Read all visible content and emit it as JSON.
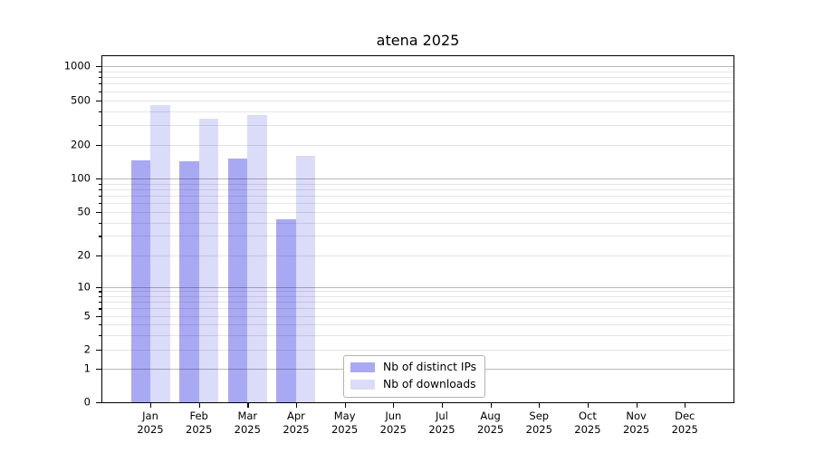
{
  "chart_data": {
    "type": "bar",
    "title": "atena 2025",
    "categories": [
      {
        "month": "Jan",
        "year": "2025"
      },
      {
        "month": "Feb",
        "year": "2025"
      },
      {
        "month": "Mar",
        "year": "2025"
      },
      {
        "month": "Apr",
        "year": "2025"
      },
      {
        "month": "May",
        "year": "2025"
      },
      {
        "month": "Jun",
        "year": "2025"
      },
      {
        "month": "Jul",
        "year": "2025"
      },
      {
        "month": "Aug",
        "year": "2025"
      },
      {
        "month": "Sep",
        "year": "2025"
      },
      {
        "month": "Oct",
        "year": "2025"
      },
      {
        "month": "Nov",
        "year": "2025"
      },
      {
        "month": "Dec",
        "year": "2025"
      }
    ],
    "series": [
      {
        "name": "Nb of distinct IPs",
        "color": "#a9a9f3",
        "values": [
          145,
          142,
          151,
          43,
          null,
          null,
          null,
          null,
          null,
          null,
          null,
          null
        ]
      },
      {
        "name": "Nb of downloads",
        "color": "#dbdbfa",
        "values": [
          450,
          345,
          370,
          160,
          null,
          null,
          null,
          null,
          null,
          null,
          null,
          null
        ]
      }
    ],
    "yticks": [
      0,
      1,
      2,
      5,
      10,
      20,
      50,
      100,
      200,
      500,
      1000
    ],
    "yscale": "symlog",
    "xlabel": "",
    "ylabel": "",
    "grid": true,
    "legend_position": "inside lower center",
    "colors": {
      "grid_major": "#b8b8b8",
      "grid_minor": "#e7e7e7",
      "axis": "#000000",
      "background": "#ffffff"
    }
  }
}
